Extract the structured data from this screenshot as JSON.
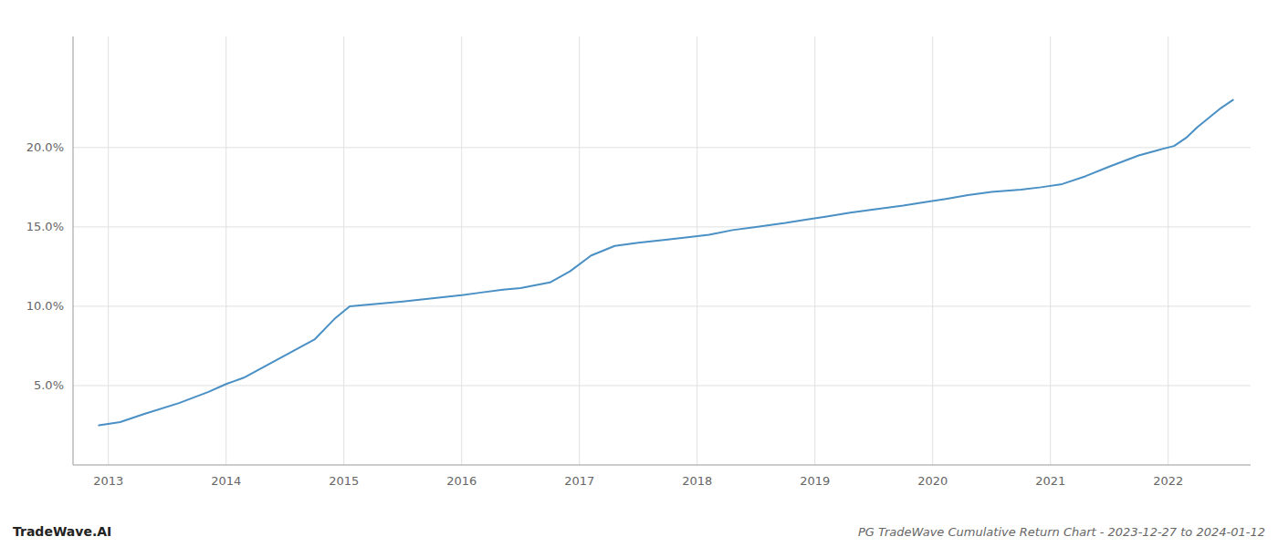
{
  "chart_data": {
    "type": "line",
    "title": "PG TradeWave Cumulative Return Chart - 2023-12-27 to 2024-01-12",
    "annotations": [
      "TradeWave.AI"
    ],
    "color": "#4a90c4",
    "grid": true,
    "x": [
      2012.92,
      2013.1,
      2013.3,
      2013.6,
      2013.85,
      2014.0,
      2014.15,
      2014.35,
      2014.55,
      2014.75,
      2014.92,
      2015.05,
      2015.2,
      2015.5,
      2015.75,
      2016.0,
      2016.15,
      2016.35,
      2016.5,
      2016.75,
      2016.92,
      2017.1,
      2017.3,
      2017.5,
      2017.75,
      2017.92,
      2018.1,
      2018.3,
      2018.5,
      2018.75,
      2018.92,
      2019.1,
      2019.3,
      2019.5,
      2019.75,
      2019.92,
      2020.1,
      2020.3,
      2020.5,
      2020.75,
      2020.92,
      2021.1,
      2021.3,
      2021.5,
      2021.75,
      2021.92,
      2022.05,
      2022.15,
      2022.25,
      2022.35,
      2022.45,
      2022.55
    ],
    "values": [
      2.5,
      2.7,
      3.2,
      3.9,
      4.6,
      5.1,
      5.5,
      6.3,
      7.1,
      7.9,
      9.2,
      10.0,
      10.1,
      10.3,
      10.5,
      10.7,
      10.85,
      11.05,
      11.15,
      11.5,
      12.2,
      13.2,
      13.8,
      14.0,
      14.2,
      14.35,
      14.5,
      14.8,
      15.0,
      15.25,
      15.45,
      15.65,
      15.9,
      16.1,
      16.35,
      16.55,
      16.75,
      17.0,
      17.2,
      17.35,
      17.5,
      17.7,
      18.2,
      18.8,
      19.5,
      19.85,
      20.1,
      20.6,
      21.3,
      21.9,
      22.5,
      23.0
    ],
    "xlim": [
      2012.7,
      2022.7
    ],
    "xticks": [
      2013,
      2014,
      2015,
      2016,
      2017,
      2018,
      2019,
      2020,
      2021,
      2022
    ],
    "ylim": [
      0,
      27
    ],
    "yticks": [
      {
        "value": 5.0,
        "label": "5.0%"
      },
      {
        "value": 10.0,
        "label": "10.0%"
      },
      {
        "value": 15.0,
        "label": "15.0%"
      },
      {
        "value": 20.0,
        "label": "20.0%"
      }
    ]
  }
}
